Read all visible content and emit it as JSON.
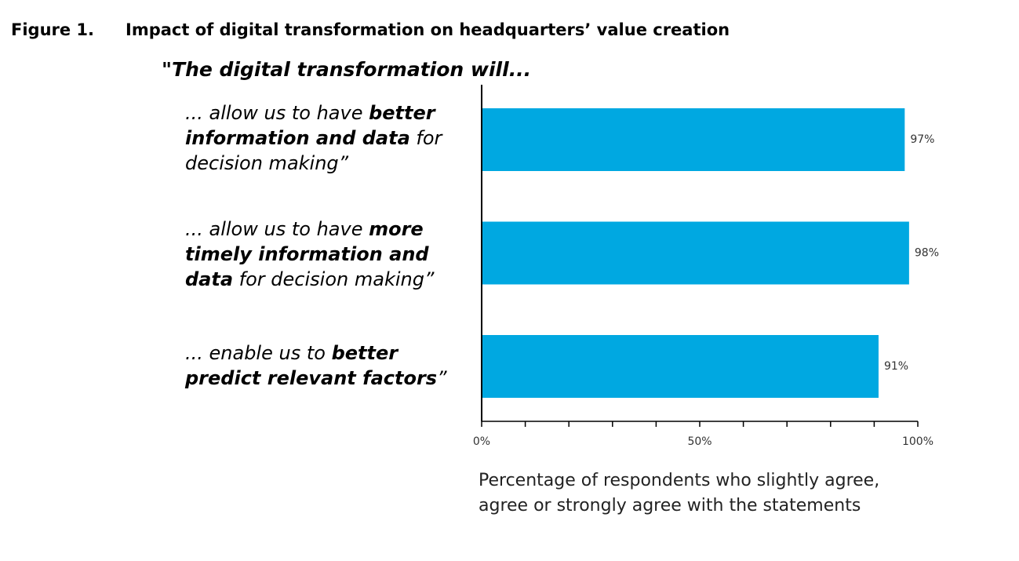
{
  "figure": {
    "number": "Figure 1.",
    "title": "Impact of digital transformation on headquarters’ value creation"
  },
  "chart_data": {
    "type": "bar",
    "orientation": "horizontal",
    "title": "\"The digital transformation will...",
    "categories": [
      [
        {
          "t": "... allow us to have "
        },
        {
          "t": "better",
          "b": true
        },
        {
          "br": true
        },
        {
          "t": "information and data",
          "b": true
        },
        {
          "t": " for"
        },
        {
          "br": true
        },
        {
          "t": "decision making”"
        }
      ],
      [
        {
          "t": "... allow us to have "
        },
        {
          "t": "more",
          "b": true
        },
        {
          "br": true
        },
        {
          "t": "timely information and",
          "b": true
        },
        {
          "br": true
        },
        {
          "t": "data",
          "b": true
        },
        {
          "t": " for decision making”"
        }
      ],
      [
        {
          "t": "... enable us to "
        },
        {
          "t": "better",
          "b": true
        },
        {
          "br": true
        },
        {
          "t": "predict relevant factors",
          "b": true
        },
        {
          "t": "”"
        }
      ]
    ],
    "values": [
      97,
      98,
      91
    ],
    "value_labels": [
      "97%",
      "98%",
      "91%"
    ],
    "xlim": [
      0,
      100
    ],
    "x_tick_labels": [
      "0%",
      "50%",
      "100%"
    ],
    "xlabel": "Percentage of respondents who slightly agree, agree or strongly agree with the statements",
    "bar_color": "#00a8e1",
    "grid": false
  }
}
